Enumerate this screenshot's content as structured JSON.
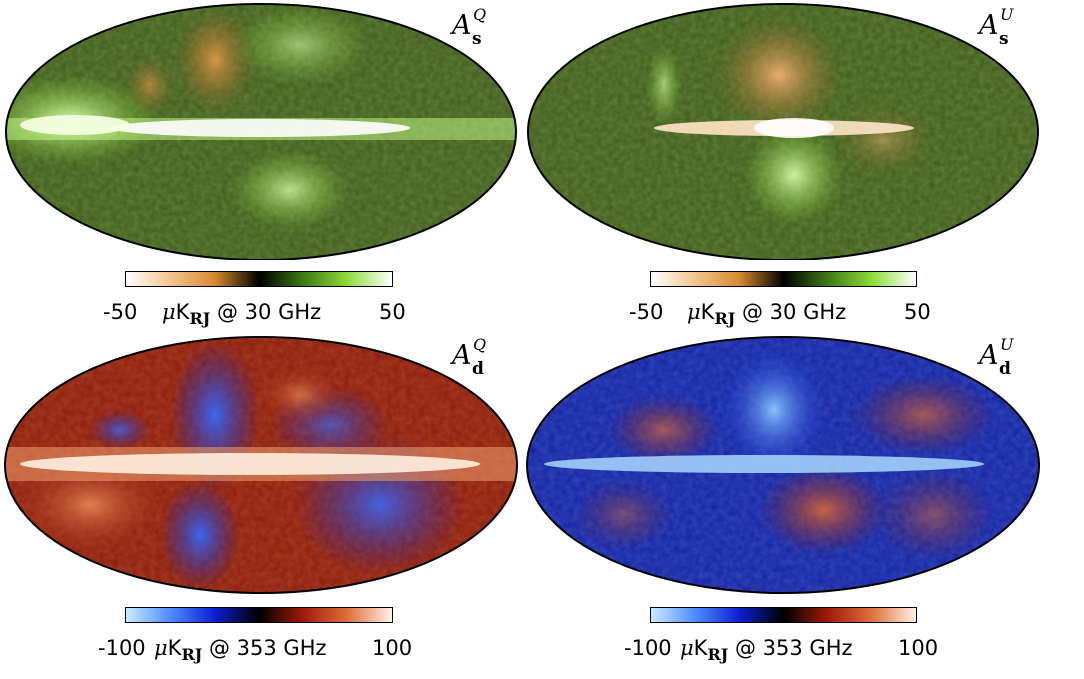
{
  "panels": [
    {
      "id": "as-q",
      "label_main": "A",
      "label_sub": "s",
      "label_sup": "Q",
      "colorbar": {
        "min": "-50",
        "max": "50",
        "mu": "μ",
        "unit_K": "K",
        "unit_sub": "RJ",
        "freq": "@ 30 GHz"
      },
      "colors": [
        "#ffffff",
        "#f3c48e",
        "#d68a2e",
        "#000000",
        "#3e7a12",
        "#8edb3a",
        "#ffffff"
      ],
      "plane": "#e9ffd2"
    },
    {
      "id": "as-u",
      "label_main": "A",
      "label_sub": "s",
      "label_sup": "U",
      "colorbar": {
        "min": "-50",
        "max": "50",
        "mu": "μ",
        "unit_K": "K",
        "unit_sub": "RJ",
        "freq": "@ 30 GHz"
      },
      "colors": [
        "#ffffff",
        "#f3c48e",
        "#d68a2e",
        "#000000",
        "#3e7a12",
        "#8edb3a",
        "#ffffff"
      ],
      "plane": "#fff2dc"
    },
    {
      "id": "ad-q",
      "label_main": "A",
      "label_sub": "d",
      "label_sup": "Q",
      "colorbar": {
        "min": "-100",
        "max": "100",
        "mu": "μ",
        "unit_K": "K",
        "unit_sub": "RJ",
        "freq": "@ 353 GHz"
      },
      "colors": [
        "#c9ecff",
        "#4e8cff",
        "#0c1fd0",
        "#000000",
        "#a01a0a",
        "#e0703a",
        "#fff2e4"
      ],
      "plane": "#fff0dc"
    },
    {
      "id": "ad-u",
      "label_main": "A",
      "label_sub": "d",
      "label_sup": "U",
      "colorbar": {
        "min": "-100",
        "max": "100",
        "mu": "μ",
        "unit_K": "K",
        "unit_sub": "RJ",
        "freq": "@ 353 GHz"
      },
      "colors": [
        "#c9ecff",
        "#4e8cff",
        "#0c1fd0",
        "#000000",
        "#a01a0a",
        "#e0703a",
        "#fff2e4"
      ],
      "plane": "#cfe6ff"
    }
  ]
}
